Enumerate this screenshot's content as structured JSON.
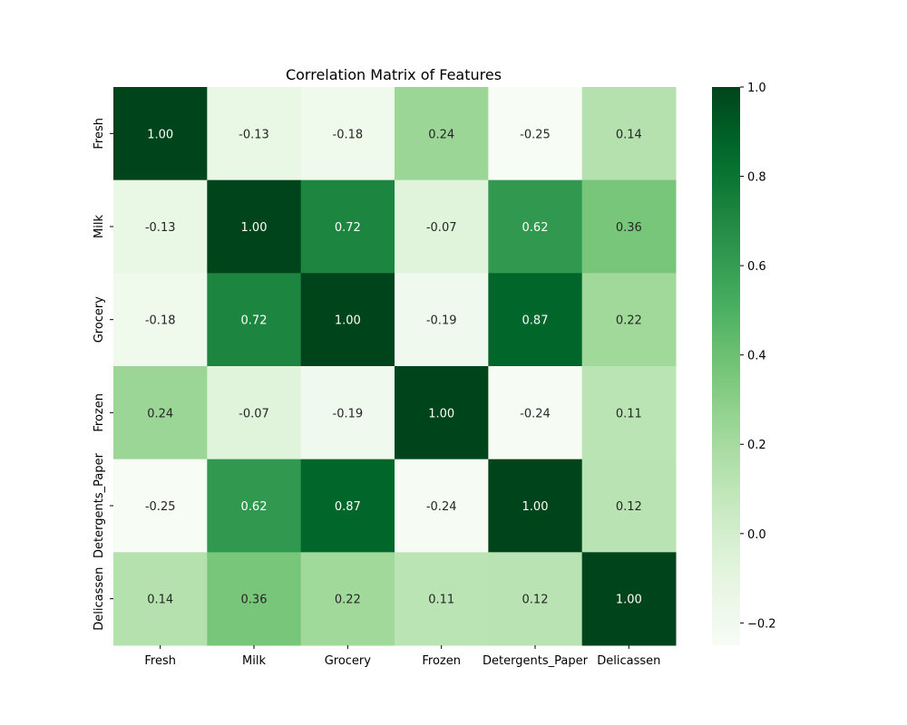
{
  "chart_data": {
    "type": "heatmap",
    "title": "Correlation Matrix of Features",
    "xlabel": "",
    "ylabel": "",
    "x_categories": [
      "Fresh",
      "Milk",
      "Grocery",
      "Frozen",
      "Detergents_Paper",
      "Delicassen"
    ],
    "y_categories": [
      "Fresh",
      "Milk",
      "Grocery",
      "Frozen",
      "Detergents_Paper",
      "Delicassen"
    ],
    "values": [
      [
        1.0,
        -0.13,
        -0.18,
        0.24,
        -0.25,
        0.14
      ],
      [
        -0.13,
        1.0,
        0.72,
        -0.07,
        0.62,
        0.36
      ],
      [
        -0.18,
        0.72,
        1.0,
        -0.19,
        0.87,
        0.22
      ],
      [
        0.24,
        -0.07,
        -0.19,
        1.0,
        -0.24,
        0.11
      ],
      [
        -0.25,
        0.62,
        0.87,
        -0.24,
        1.0,
        0.12
      ],
      [
        0.14,
        0.36,
        0.22,
        0.11,
        0.12,
        1.0
      ]
    ],
    "annotation_labels": [
      [
        "1.00",
        "-0.13",
        "-0.18",
        "0.24",
        "-0.25",
        "0.14"
      ],
      [
        "-0.13",
        "1.00",
        "0.72",
        "-0.07",
        "0.62",
        "0.36"
      ],
      [
        "-0.18",
        "0.72",
        "1.00",
        "-0.19",
        "0.87",
        "0.22"
      ],
      [
        "0.24",
        "-0.07",
        "-0.19",
        "1.00",
        "-0.24",
        "0.11"
      ],
      [
        "-0.25",
        "0.62",
        "0.87",
        "-0.24",
        "1.00",
        "0.12"
      ],
      [
        "0.14",
        "0.36",
        "0.22",
        "0.11",
        "0.12",
        "1.00"
      ]
    ],
    "colorbar": {
      "colormap": "Greens",
      "vmin": -0.25,
      "vmax": 1.0,
      "ticks": [
        -0.2,
        0.0,
        0.2,
        0.4,
        0.6,
        0.8,
        1.0
      ],
      "tick_labels": [
        "−0.2",
        "0.0",
        "0.2",
        "0.4",
        "0.6",
        "0.8",
        "1.0"
      ]
    },
    "colors": {
      "low": "#f7fcf5",
      "high": "#00441b"
    },
    "grid": false,
    "legend": "colorbar-right"
  }
}
